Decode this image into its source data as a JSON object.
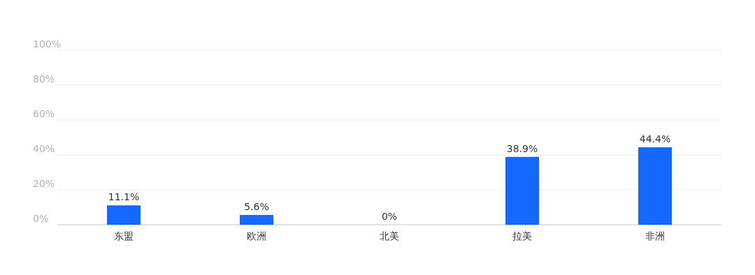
{
  "chart_data": {
    "type": "bar",
    "categories": [
      "东盟",
      "欧洲",
      "北美",
      "拉美",
      "非洲"
    ],
    "values": [
      11.1,
      5.6,
      0,
      38.9,
      44.4
    ],
    "value_labels": [
      "11.1%",
      "5.6%",
      "0%",
      "38.9%",
      "44.4%"
    ],
    "color": "#1467ff",
    "ylim": [
      0,
      100
    ],
    "yticks": [
      {
        "value": 0,
        "label": "0%"
      },
      {
        "value": 20,
        "label": "20%"
      },
      {
        "value": 40,
        "label": "40%"
      },
      {
        "value": 60,
        "label": "60%"
      },
      {
        "value": 80,
        "label": "80%"
      },
      {
        "value": 100,
        "label": "100%"
      }
    ],
    "grid": "y"
  }
}
